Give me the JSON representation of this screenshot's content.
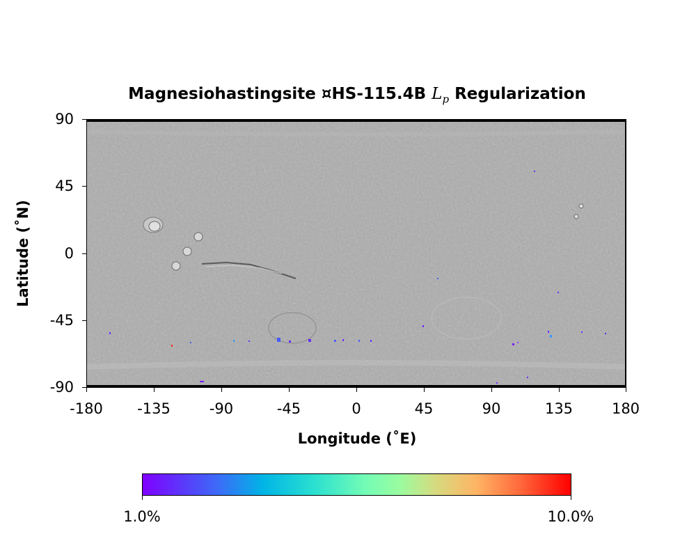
{
  "title": {
    "main": "Magnesiohastingsite ¤HS-115.4B",
    "math": "L",
    "math_sub": "p",
    "tail": "Regularization"
  },
  "axes": {
    "xlabel": "Longitude (˚E)",
    "ylabel": "Latitude (˚N)",
    "xticks": [
      "-180",
      "-135",
      "-90",
      "-45",
      "0",
      "45",
      "90",
      "135",
      "180"
    ],
    "yticks": [
      "90",
      "45",
      "0",
      "-45",
      "-90"
    ]
  },
  "colorbar": {
    "min_label": "1.0%",
    "max_label": "10.0%",
    "colormap": "rainbow",
    "colors": [
      "#7f00ff",
      "#00b4e6",
      "#73fcb6",
      "#ffb464",
      "#ff0000"
    ]
  },
  "map": {
    "projection": "equirectangular",
    "basemap": "shaded relief (grayscale)",
    "lon_range": [
      -180,
      180
    ],
    "lat_range": [
      -90,
      90
    ]
  }
}
